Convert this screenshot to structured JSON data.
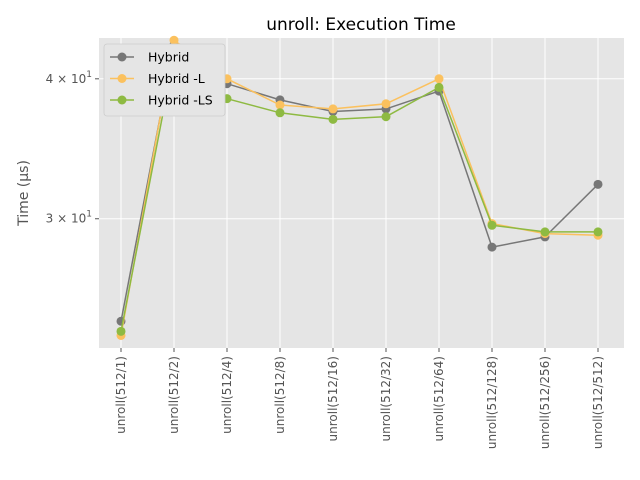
{
  "chart_data": {
    "type": "line",
    "title": "unroll: Execution Time",
    "xlabel": "",
    "ylabel": "Time (µs)",
    "yscale": "log",
    "ylim": [
      23.0,
      43.5
    ],
    "yticks": [
      {
        "value": 30,
        "base": "3",
        "exp": "1"
      },
      {
        "value": 40,
        "base": "4",
        "exp": "1"
      }
    ],
    "ytick_sep": " × 10",
    "grid": true,
    "legend": "top-left",
    "categories": [
      "unroll(512/1)",
      "unroll(512/2)",
      "unroll(512/4)",
      "unroll(512/8)",
      "unroll(512/16)",
      "unroll(512/32)",
      "unroll(512/64)",
      "unroll(512/128)",
      "unroll(512/256)",
      "unroll(512/512)"
    ],
    "series": [
      {
        "name": "Hybrid",
        "color": "#777777",
        "values": [
          24.3,
          42.9,
          39.6,
          38.3,
          37.4,
          37.6,
          39.0,
          28.3,
          28.9,
          32.2
        ]
      },
      {
        "name": "Hybrid -L",
        "color": "#FBC15E",
        "values": [
          23.6,
          43.3,
          40.0,
          37.9,
          37.6,
          38.0,
          40.0,
          29.7,
          29.1,
          29.0
        ]
      },
      {
        "name": "Hybrid -LS",
        "color": "#8EBA42",
        "values": [
          23.8,
          41.9,
          38.4,
          37.3,
          36.8,
          37.0,
          39.3,
          29.6,
          29.2,
          29.2
        ]
      }
    ]
  }
}
